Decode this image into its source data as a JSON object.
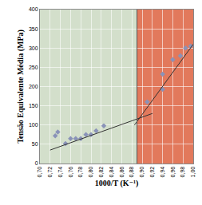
{
  "chart_data": {
    "type": "scatter",
    "x_label": "1000/T (K⁻¹)",
    "y_label": "Tensão Equivalente Média (MPa)",
    "xlim": [
      0.7,
      1.0
    ],
    "ylim": [
      0,
      400
    ],
    "xticks": [
      {
        "value": 0.7,
        "label": "0,70"
      },
      {
        "value": 0.72,
        "label": "0,72"
      },
      {
        "value": 0.74,
        "label": "0,74"
      },
      {
        "value": 0.76,
        "label": "0,76"
      },
      {
        "value": 0.78,
        "label": "0,78"
      },
      {
        "value": 0.8,
        "label": "0,80"
      },
      {
        "value": 0.82,
        "label": "0,82"
      },
      {
        "value": 0.84,
        "label": "0,84"
      },
      {
        "value": 0.86,
        "label": "0,86"
      },
      {
        "value": 0.88,
        "label": "0,88"
      },
      {
        "value": 0.9,
        "label": "0,90"
      },
      {
        "value": 0.92,
        "label": "0,92"
      },
      {
        "value": 0.94,
        "label": "0,94"
      },
      {
        "value": 0.96,
        "label": "0,96"
      },
      {
        "value": 0.98,
        "label": "0,98"
      },
      {
        "value": 1.0,
        "label": "1,00"
      }
    ],
    "yticks": [
      0,
      50,
      100,
      150,
      200,
      250,
      300,
      350,
      400
    ],
    "grid": true,
    "shaded_regions": [
      {
        "x": [
          0.7,
          0.89
        ],
        "color": "#d3dfcb"
      },
      {
        "x": [
          0.89,
          1.0
        ],
        "color": "#e2795c"
      }
    ],
    "series": [
      {
        "type": "scatter",
        "marker": "diamond",
        "color": "#8a93b8",
        "x": [
          0.73,
          0.735,
          0.75,
          0.76,
          0.77,
          0.78,
          0.79,
          0.8,
          0.81,
          0.825
        ],
        "values": [
          72,
          82,
          52,
          65,
          65,
          65,
          75,
          75,
          85,
          98
        ]
      },
      {
        "type": "scatter",
        "marker": "diamond",
        "color": "#8a93b8",
        "x": [
          0.91,
          0.94,
          0.94,
          0.96,
          0.975,
          0.985,
          0.995
        ],
        "values": [
          160,
          232,
          193,
          270,
          280,
          300,
          305
        ]
      },
      {
        "type": "line",
        "line_style": "solid",
        "color": "#333333",
        "x": [
          0.72,
          0.92
        ],
        "values": [
          35,
          130
        ]
      },
      {
        "type": "line",
        "line_style": "solid",
        "color": "#333333",
        "x": [
          0.885,
          1.0
        ],
        "values": [
          100,
          310
        ]
      }
    ]
  }
}
